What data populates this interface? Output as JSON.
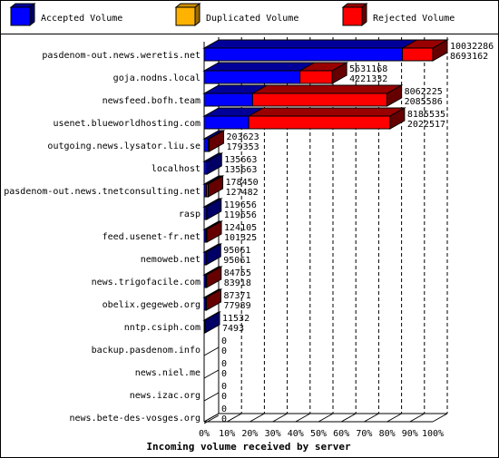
{
  "chart_data": {
    "type": "bar",
    "orientation": "horizontal",
    "stacked_3d": true,
    "xlabel": "Incoming volume received by server",
    "xlim": [
      0,
      100
    ],
    "xticks": [
      "0%",
      "10%",
      "20%",
      "30%",
      "40%",
      "50%",
      "60%",
      "70%",
      "80%",
      "90%",
      "100%"
    ],
    "legend_position": "top",
    "series": [
      {
        "name": "Accepted Volume",
        "color": "#0000ff"
      },
      {
        "name": "Duplicated Volume",
        "color": "#ffb200"
      },
      {
        "name": "Rejected Volume",
        "color": "#ff0000"
      }
    ],
    "categories": [
      "pasdenom-out.news.weretis.net",
      "goja.nodns.local",
      "newsfeed.bofh.team",
      "usenet.blueworldhosting.com",
      "outgoing.news.lysator.liu.se",
      "localhost",
      "pasdenom-out.news.tnetconsulting.net",
      "rasp",
      "feed.usenet-fr.net",
      "nemoweb.net",
      "news.trigofacile.com",
      "obelix.gegeweb.org",
      "nntp.csiph.com",
      "backup.pasdenom.info",
      "news.niel.me",
      "news.izac.org",
      "news.bete-des-vosges.org"
    ],
    "value_labels": [
      [
        "10032286",
        "8693162"
      ],
      [
        "5631168",
        "4221332"
      ],
      [
        "8062225",
        "2085586"
      ],
      [
        "8185535",
        "2022517"
      ],
      [
        "203623",
        "179353"
      ],
      [
        "135663",
        "135663"
      ],
      [
        "178450",
        "127482"
      ],
      [
        "119656",
        "119656"
      ],
      [
        "124105",
        "101325"
      ],
      [
        "95061",
        "95061"
      ],
      [
        "84755",
        "83918"
      ],
      [
        "87371",
        "77989"
      ],
      [
        "11532",
        "7493"
      ],
      [
        "0",
        "0"
      ],
      [
        "0",
        "0"
      ],
      [
        "0",
        "0"
      ],
      [
        "0",
        "0"
      ]
    ],
    "accepted_pct": [
      86.7,
      41.9,
      21.2,
      19.5,
      1.8,
      1.3,
      1.0,
      1.1,
      0.8,
      0.9,
      0.7,
      0.6,
      0.1,
      0,
      0,
      0,
      0
    ],
    "duplicated_pct": [
      0,
      0,
      0,
      0,
      0,
      0,
      0,
      0,
      0,
      0,
      0,
      0,
      0,
      0,
      0,
      0,
      0
    ],
    "rejected_pct": [
      13.3,
      14.1,
      58.8,
      61.8,
      0.2,
      0,
      0.8,
      0,
      0.4,
      0,
      0.1,
      0.2,
      0.0,
      0,
      0,
      0,
      0
    ]
  }
}
